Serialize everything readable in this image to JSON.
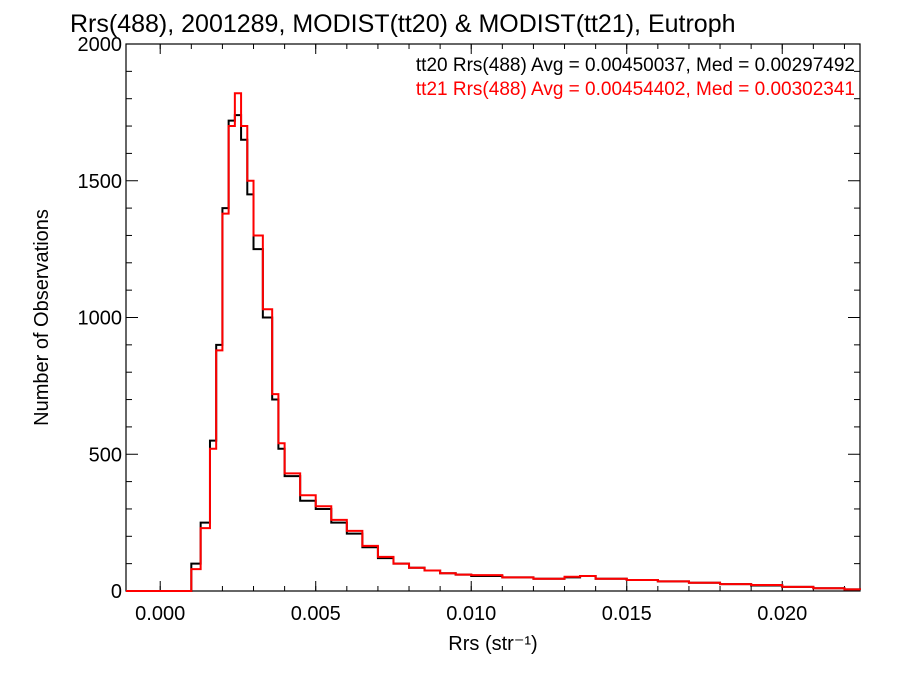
{
  "chart_data": {
    "type": "line",
    "title": "Rrs(488), 2001289, MODIST(tt20) & MODIST(tt21), Eutroph",
    "xlabel": "Rrs (str⁻¹)",
    "ylabel": "Number of Observations",
    "xlim": [
      -0.0011,
      0.0225
    ],
    "ylim": [
      0,
      2000
    ],
    "x_ticks": [
      "0.000",
      "0.005",
      "0.010",
      "0.015",
      "0.020"
    ],
    "x_tick_values": [
      0.0,
      0.005,
      0.01,
      0.015,
      0.02
    ],
    "y_ticks": [
      "0",
      "500",
      "1000",
      "1500",
      "2000"
    ],
    "y_tick_values": [
      0,
      500,
      1000,
      1500,
      2000
    ],
    "grid": false,
    "legend_position": "top-right",
    "series": [
      {
        "name": "tt20",
        "label": "tt20 Rrs(488) Avg = 0.00450037, Med = 0.00297492",
        "color": "#000000",
        "x": [
          -0.0011,
          0.0,
          0.0005,
          0.001,
          0.0013,
          0.0016,
          0.0018,
          0.002,
          0.0022,
          0.0024,
          0.0026,
          0.0028,
          0.003,
          0.0033,
          0.0036,
          0.0038,
          0.004,
          0.0045,
          0.005,
          0.0055,
          0.006,
          0.0065,
          0.007,
          0.0075,
          0.008,
          0.0085,
          0.009,
          0.0095,
          0.01,
          0.011,
          0.012,
          0.013,
          0.0135,
          0.014,
          0.015,
          0.016,
          0.017,
          0.018,
          0.019,
          0.02,
          0.021,
          0.022,
          0.0225
        ],
        "values": [
          0,
          0,
          0,
          100,
          250,
          550,
          900,
          1400,
          1720,
          1740,
          1650,
          1450,
          1250,
          1000,
          700,
          520,
          420,
          330,
          300,
          250,
          210,
          160,
          120,
          100,
          85,
          75,
          65,
          60,
          55,
          50,
          45,
          50,
          55,
          45,
          40,
          35,
          30,
          25,
          20,
          15,
          10,
          6,
          4
        ]
      },
      {
        "name": "tt21",
        "label": "tt21 Rrs(488) Avg = 0.00454402, Med = 0.00302341",
        "color": "#ff0000",
        "x": [
          -0.0011,
          0.0,
          0.0005,
          0.001,
          0.0013,
          0.0016,
          0.0018,
          0.002,
          0.0022,
          0.0024,
          0.0026,
          0.0028,
          0.003,
          0.0033,
          0.0036,
          0.0038,
          0.004,
          0.0045,
          0.005,
          0.0055,
          0.006,
          0.0065,
          0.007,
          0.0075,
          0.008,
          0.0085,
          0.009,
          0.0095,
          0.01,
          0.011,
          0.012,
          0.013,
          0.0135,
          0.014,
          0.015,
          0.016,
          0.017,
          0.018,
          0.019,
          0.02,
          0.021,
          0.022,
          0.0225
        ],
        "values": [
          0,
          0,
          0,
          80,
          230,
          520,
          880,
          1380,
          1700,
          1820,
          1700,
          1500,
          1300,
          1030,
          720,
          540,
          430,
          350,
          310,
          260,
          220,
          165,
          125,
          100,
          85,
          75,
          65,
          60,
          58,
          50,
          45,
          52,
          55,
          45,
          40,
          35,
          30,
          25,
          22,
          15,
          10,
          6,
          4
        ]
      }
    ]
  }
}
